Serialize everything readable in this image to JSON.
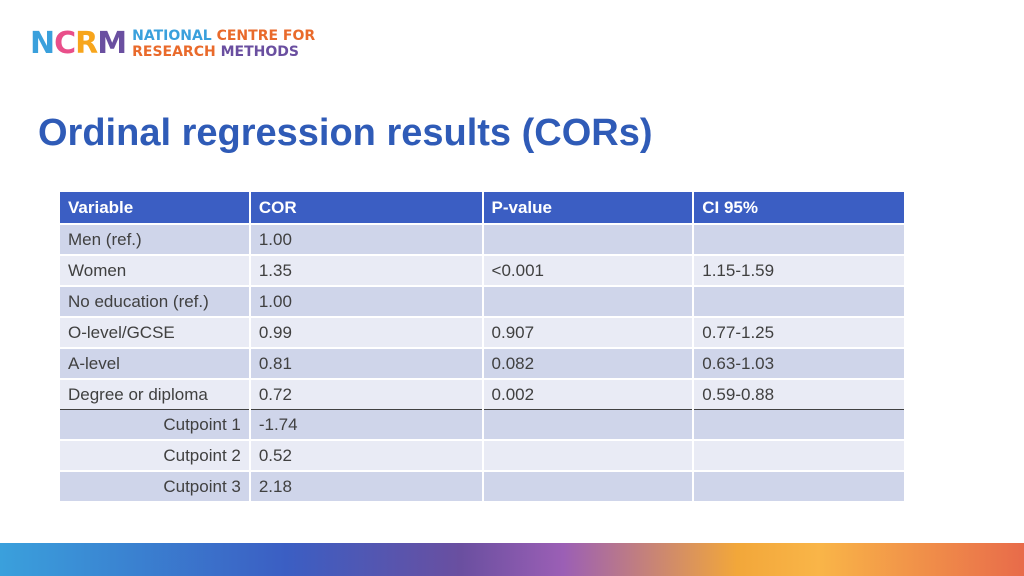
{
  "logo": {
    "mark_letters": [
      "N",
      "C",
      "R",
      "M"
    ],
    "line1_a": "NATIONAL",
    "line1_b": "CENTRE FOR",
    "line2_a": "RESEARCH",
    "line2_b": "METHODS"
  },
  "slide": {
    "title": "Ordinal regression results (CORs)"
  },
  "table": {
    "headers": [
      "Variable",
      "COR",
      "P-value",
      "CI 95%"
    ],
    "rows": [
      [
        "Men (ref.)",
        "1.00",
        "",
        ""
      ],
      [
        "Women",
        "1.35",
        "<0.001",
        "1.15-1.59"
      ],
      [
        "No education (ref.)",
        "1.00",
        "",
        ""
      ],
      [
        "O-level/GCSE",
        "0.99",
        "0.907",
        "0.77-1.25"
      ],
      [
        "A-level",
        "0.81",
        "0.082",
        "0.63-1.03"
      ],
      [
        "Degree or diploma",
        "0.72",
        "0.002",
        "0.59-0.88"
      ],
      [
        "Cutpoint 1",
        "-1.74",
        "",
        ""
      ],
      [
        "Cutpoint 2",
        "0.52",
        "",
        ""
      ],
      [
        "Cutpoint 3",
        "2.18",
        "",
        ""
      ]
    ]
  },
  "colors": {
    "title": "#2f5bb7",
    "header_bg": "#3b5ec3",
    "row_dark": "#cfd5ea",
    "row_light": "#e9ebf5"
  }
}
